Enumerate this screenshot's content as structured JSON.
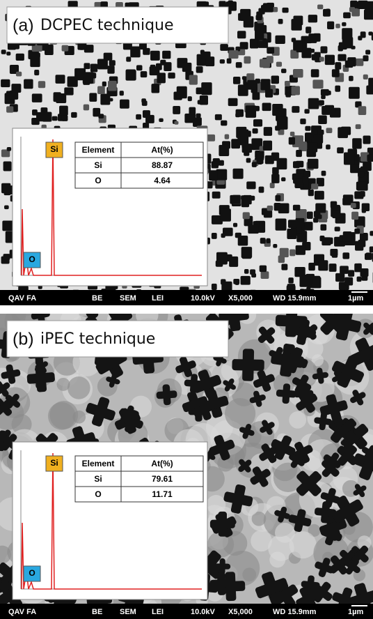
{
  "panels": [
    {
      "label": "(a)",
      "title": "DCPEC technique",
      "table": {
        "header": [
          "Element",
          "At(%)"
        ],
        "rows": [
          [
            "Si",
            "88.87"
          ],
          [
            "O",
            "4.64"
          ]
        ]
      },
      "peaks": [
        "Si",
        "O"
      ],
      "footer": [
        "QAV FA",
        "BE",
        "SEM",
        "LEI",
        "10.0kV",
        "X5,000",
        "WD 15.9mm",
        "1µm"
      ]
    },
    {
      "label": "(b)",
      "title": "iPEC technique",
      "table": {
        "header": [
          "Element",
          "At(%)"
        ],
        "rows": [
          [
            "Si",
            "79.61"
          ],
          [
            "O",
            "11.71"
          ]
        ]
      },
      "peaks": [
        "Si",
        "O"
      ],
      "footer": [
        "QAV FA",
        "BE",
        "SEM",
        "LEI",
        "10.0kV",
        "X5,000",
        "WD 15.9mm",
        "1µm"
      ]
    }
  ]
}
